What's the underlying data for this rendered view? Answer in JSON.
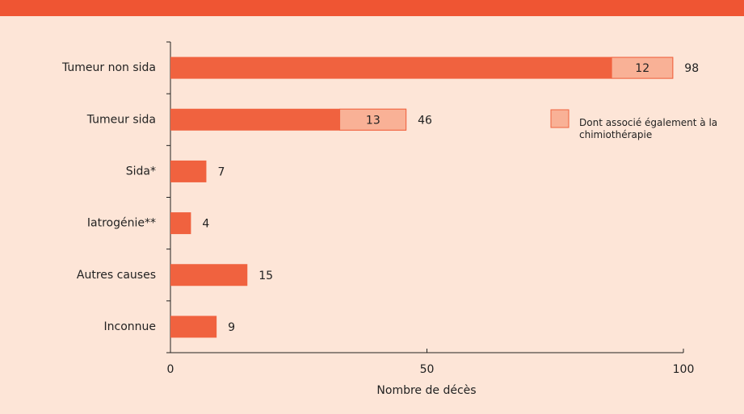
{
  "chart_data": {
    "type": "bar",
    "orientation": "horizontal",
    "categories": [
      "Tumeur non sida",
      "Tumeur sida",
      "Sida*",
      "Iatrogénie**",
      "Autres causes",
      "Inconnue"
    ],
    "values": [
      98,
      46,
      7,
      4,
      15,
      9
    ],
    "color": "#f0623f",
    "series": [
      {
        "name": "Dont associé également à la chimiothérapie",
        "color": "#f9b196",
        "values": [
          12,
          13,
          null,
          null,
          null,
          null
        ]
      }
    ],
    "xlabel": "Nombre de décès",
    "xlim": [
      0,
      100
    ],
    "xticks": [
      0,
      50,
      100
    ],
    "legend": "right"
  }
}
